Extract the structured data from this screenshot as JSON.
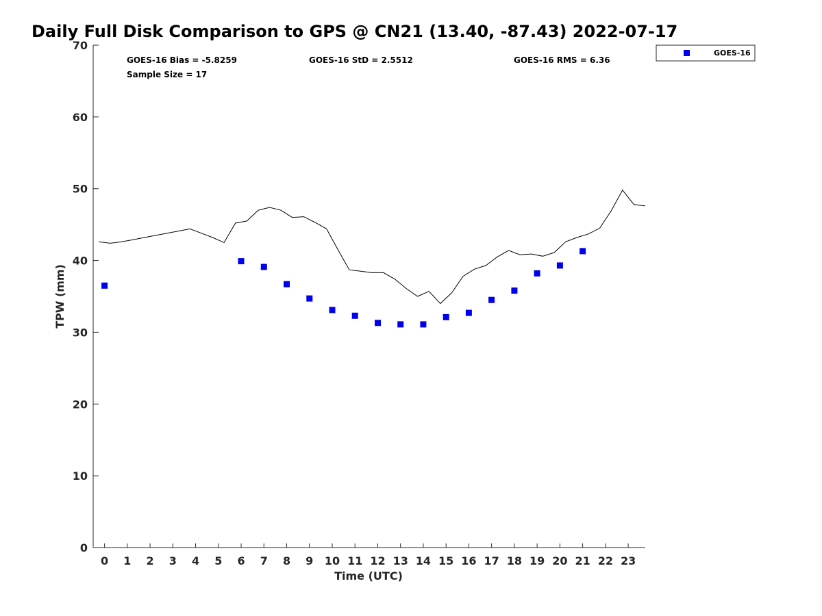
{
  "chart_data": {
    "type": "scatter",
    "title": "Daily Full Disk Comparison to GPS @ CN21 (13.40, -87.43) 2022-07-17",
    "xlabel": "Time (UTC)",
    "ylabel": "TPW (mm)",
    "xlim": [
      -0.5,
      23.75
    ],
    "ylim": [
      0,
      70
    ],
    "x_ticks": [
      "0",
      "1",
      "2",
      "3",
      "4",
      "5",
      "6",
      "7",
      "8",
      "9",
      "10",
      "11",
      "12",
      "13",
      "14",
      "15",
      "16",
      "17",
      "18",
      "19",
      "20",
      "21",
      "22",
      "23"
    ],
    "y_ticks": [
      "0",
      "10",
      "20",
      "30",
      "40",
      "50",
      "60",
      "70"
    ],
    "grid": false,
    "legend": {
      "placement": "top-right",
      "entries": [
        "GOES-16"
      ]
    },
    "stats": {
      "bias": "GOES-16 Bias = -5.8259",
      "std": "GOES-16 StD = 2.5512",
      "rms": "GOES-16 RMS = 6.36",
      "sample": "Sample Size = 17"
    },
    "series": [
      {
        "name": "GOES-16",
        "marker": "square",
        "color": "#0000ee",
        "x": [
          0,
          6,
          7,
          8,
          9,
          10,
          11,
          12,
          13,
          14,
          15,
          16,
          17,
          18,
          19,
          20,
          21
        ],
        "y": [
          36.5,
          39.9,
          39.1,
          36.7,
          34.7,
          33.1,
          32.3,
          31.3,
          31.1,
          31.1,
          32.1,
          32.7,
          34.5,
          35.8,
          38.2,
          39.3,
          41.3
        ]
      },
      {
        "marker": "line",
        "color": "#000000",
        "x": [
          -0.25,
          0.25,
          0.75,
          1.25,
          1.75,
          2.25,
          2.75,
          3.25,
          3.75,
          4.25,
          4.75,
          5.25,
          5.75,
          6.25,
          6.75,
          7.25,
          7.75,
          8.25,
          8.75,
          9.25,
          9.75,
          10.25,
          10.75,
          11.25,
          11.75,
          12.25,
          12.75,
          13.25,
          13.75,
          14.25,
          14.75,
          15.25,
          15.75,
          16.25,
          16.75,
          17.25,
          17.75,
          18.25,
          18.75,
          19.25,
          19.75,
          20.25,
          20.75,
          21.25,
          21.75,
          22.25,
          22.75,
          23.25,
          23.75
        ],
        "y": [
          42.6,
          42.4,
          42.6,
          42.9,
          43.2,
          43.5,
          43.8,
          44.1,
          44.4,
          43.8,
          43.2,
          42.5,
          45.2,
          45.5,
          47.0,
          47.4,
          47.0,
          46.0,
          46.1,
          45.3,
          44.4,
          41.5,
          38.7,
          38.5,
          38.3,
          38.3,
          37.4,
          36.1,
          35.0,
          35.7,
          34.0,
          35.5,
          37.8,
          38.8,
          39.3,
          40.5,
          41.4,
          40.8,
          40.9,
          40.6,
          41.1,
          42.6,
          43.2,
          43.7,
          44.5,
          46.9,
          49.8,
          47.8,
          47.6
        ]
      }
    ]
  }
}
